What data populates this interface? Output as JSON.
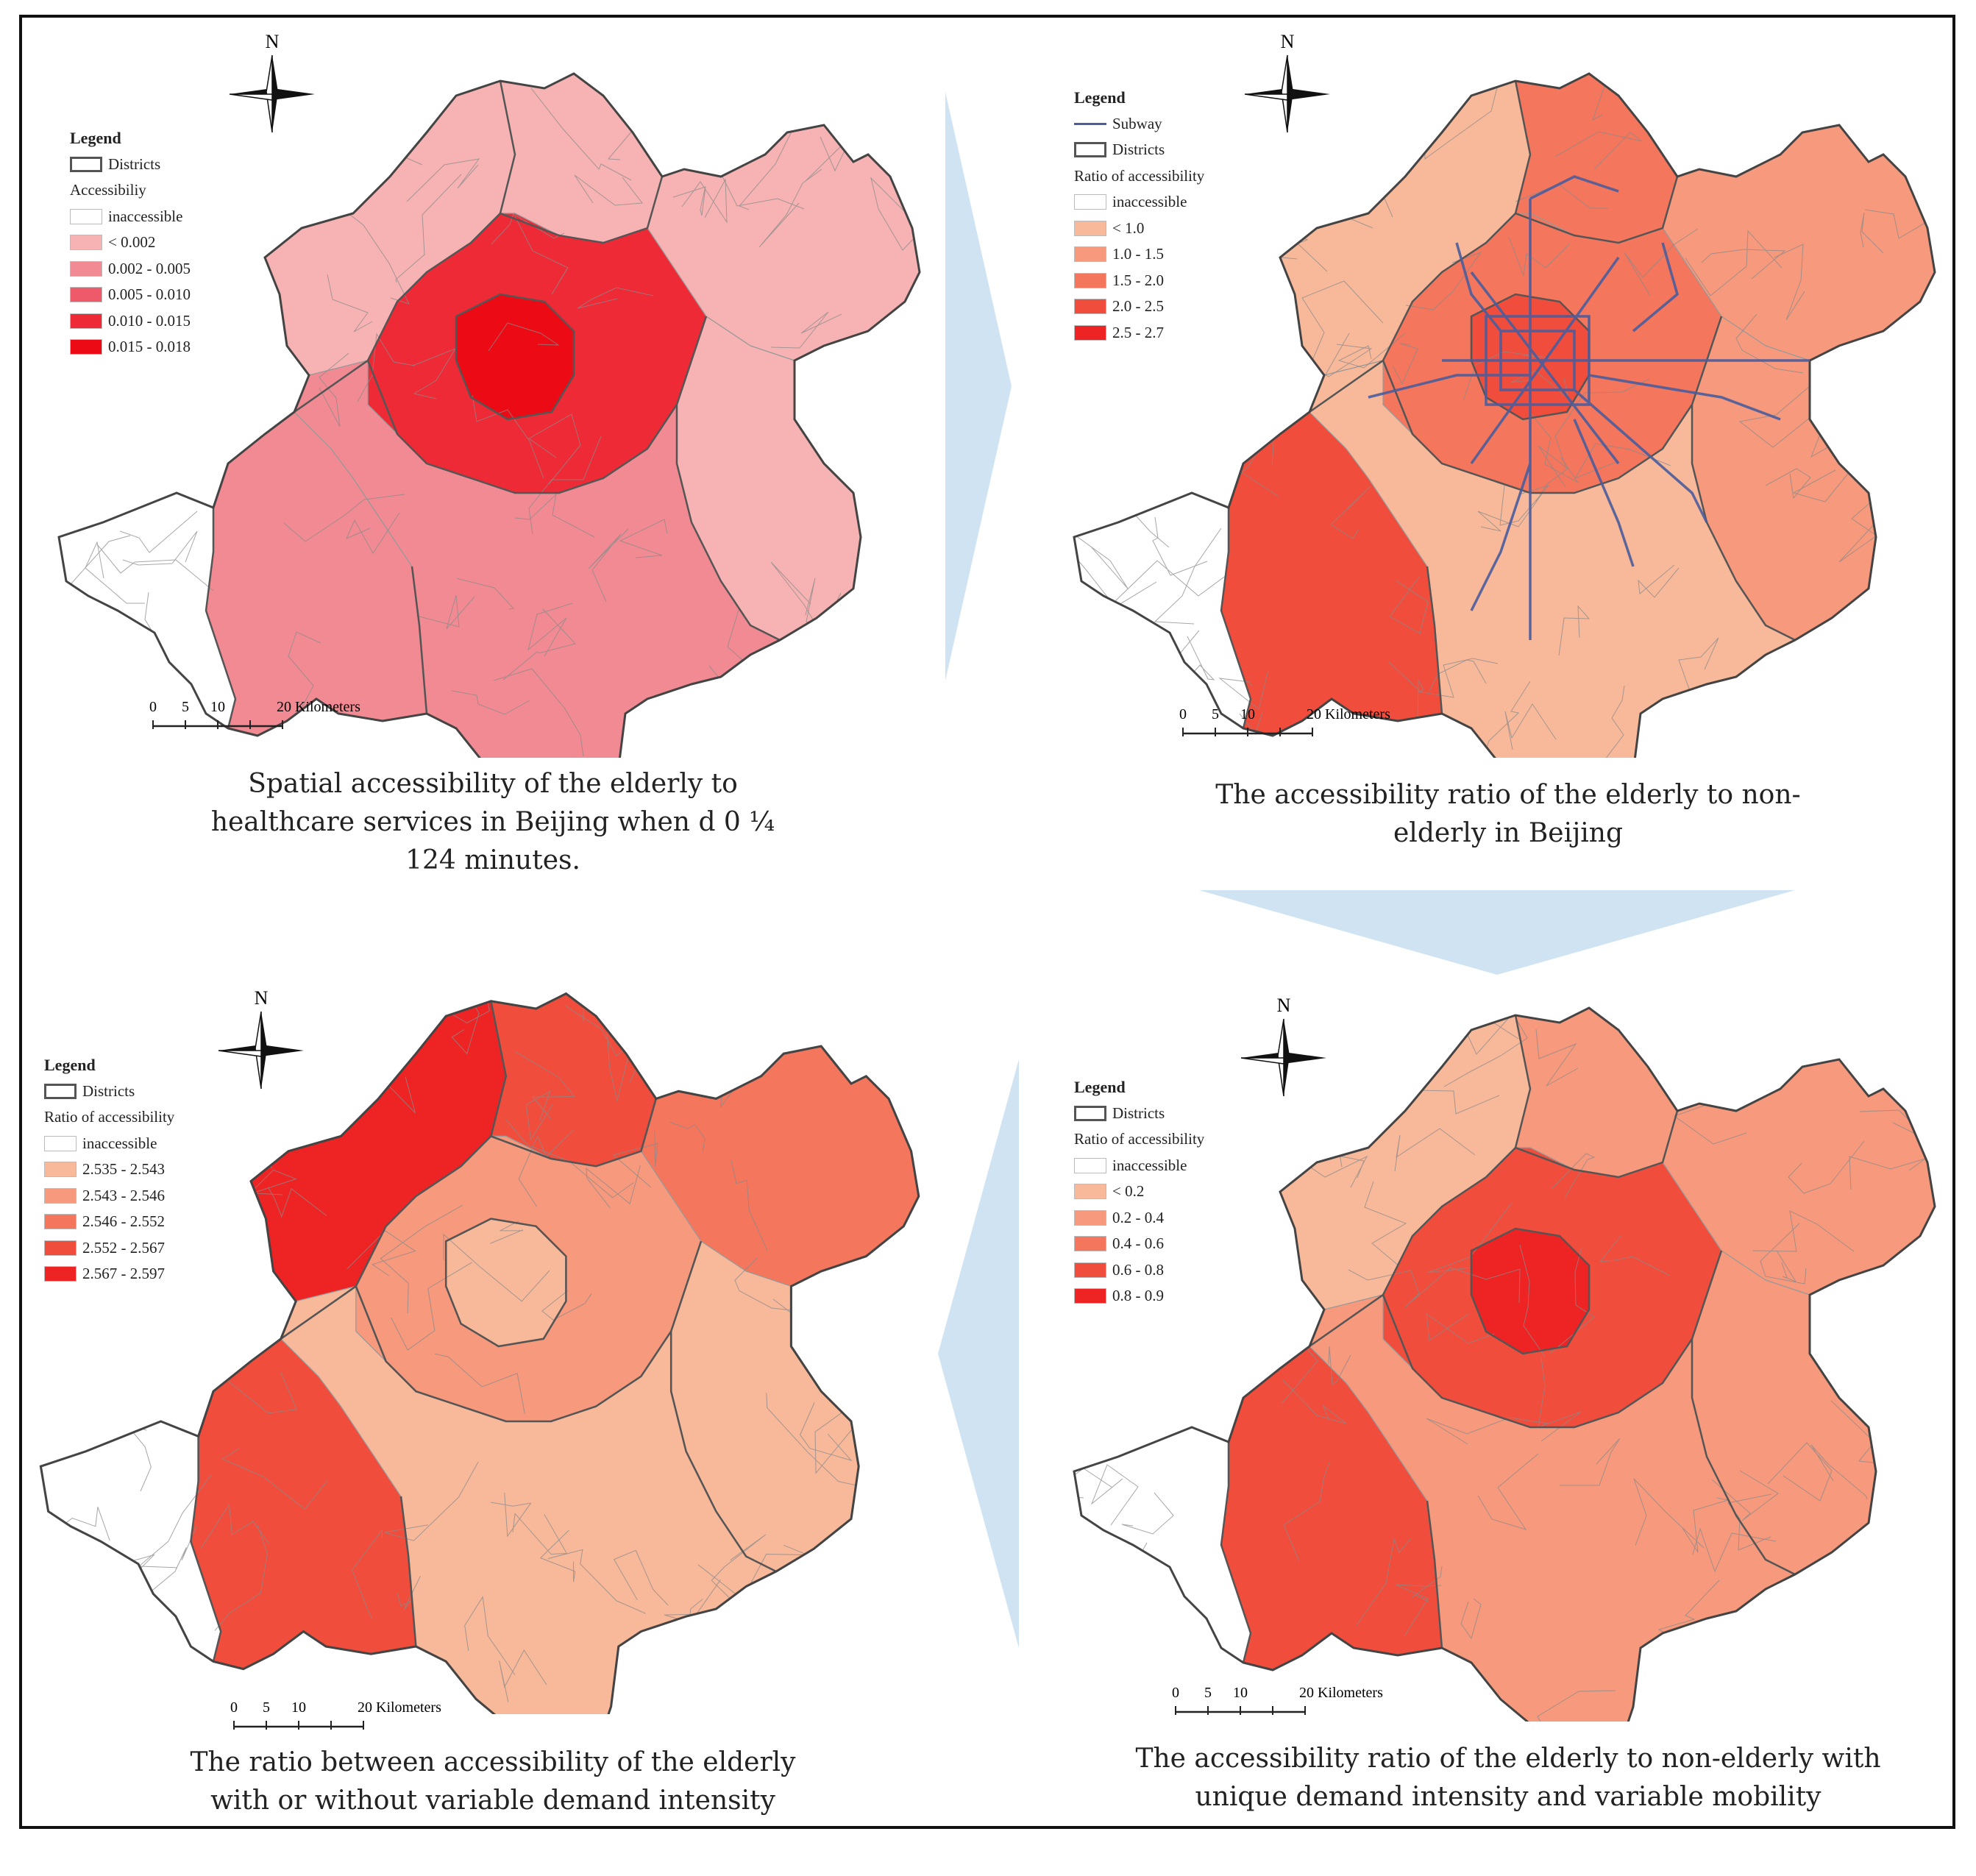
{
  "panels": {
    "tl": {
      "legend": {
        "title": "Legend",
        "districts": "Districts",
        "subtitle": "Accessibiliy",
        "classes": [
          {
            "label": "inaccessible",
            "color": "#ffffff"
          },
          {
            "label": "< 0.002",
            "color": "#f7b3b3"
          },
          {
            "label": "0.002 - 0.005",
            "color": "#f18a92"
          },
          {
            "label": "0.005 - 0.010",
            "color": "#ee5a6a"
          },
          {
            "label": "0.010 - 0.015",
            "color": "#ee2a36"
          },
          {
            "label": "0.015 - 0.018",
            "color": "#ec0a14"
          }
        ]
      },
      "north": "N",
      "scale": {
        "ticks": [
          "0",
          "5",
          "10",
          "20 Kilometers"
        ]
      },
      "caption": [
        "Spatial accessibility of the elderly to",
        "healthcare services in Beijing when d 0 ¼",
        "124 minutes."
      ]
    },
    "tr": {
      "legend": {
        "title": "Legend",
        "subway": "Subway",
        "districts": "Districts",
        "subtitle": "Ratio of accessibility",
        "classes": [
          {
            "label": "inaccessible",
            "color": "#ffffff"
          },
          {
            "label": "< 1.0",
            "color": "#f8b99a"
          },
          {
            "label": "1.0 - 1.5",
            "color": "#f6997c"
          },
          {
            "label": "1.5 - 2.0",
            "color": "#f3765d"
          },
          {
            "label": "2.0 - 2.5",
            "color": "#f04d3c"
          },
          {
            "label": "2.5 - 2.7",
            "color": "#ee2424"
          }
        ]
      },
      "north": "N",
      "scale": {
        "ticks": [
          "0",
          "5",
          "10",
          "20 Kilometers"
        ]
      },
      "caption": [
        "The accessibility ratio of the elderly to non-",
        "elderly in Beijing"
      ]
    },
    "bl": {
      "legend": {
        "title": "Legend",
        "districts": "Districts",
        "subtitle": "Ratio of accessibility",
        "classes": [
          {
            "label": "inaccessible",
            "color": "#ffffff"
          },
          {
            "label": "2.535 - 2.543",
            "color": "#f8b99a"
          },
          {
            "label": "2.543 - 2.546",
            "color": "#f6997c"
          },
          {
            "label": "2.546 - 2.552",
            "color": "#f3765d"
          },
          {
            "label": "2.552 - 2.567",
            "color": "#f04d3c"
          },
          {
            "label": "2.567 - 2.597",
            "color": "#ee2424"
          }
        ]
      },
      "north": "N",
      "scale": {
        "ticks": [
          "0",
          "5",
          "10",
          "20 Kilometers"
        ]
      },
      "caption": [
        "The ratio between accessibility of the elderly",
        "with or without variable demand intensity"
      ]
    },
    "br": {
      "legend": {
        "title": "Legend",
        "districts": "Districts",
        "subtitle": "Ratio of accessibility",
        "classes": [
          {
            "label": "inaccessible",
            "color": "#ffffff"
          },
          {
            "label": "< 0.2",
            "color": "#f8b99a"
          },
          {
            "label": "0.2 - 0.4",
            "color": "#f6997c"
          },
          {
            "label": "0.4 - 0.6",
            "color": "#f3765d"
          },
          {
            "label": "0.6 - 0.8",
            "color": "#f04d3c"
          },
          {
            "label": "0.8 - 0.9",
            "color": "#ee2424"
          }
        ]
      },
      "north": "N",
      "scale": {
        "ticks": [
          "0",
          "5",
          "10",
          "20 Kilometers"
        ]
      },
      "caption": [
        "The accessibility ratio of the elderly to non-elderly with",
        "unique demand intensity and variable mobility"
      ]
    }
  },
  "colors": {
    "arrow": "#cfe3f3",
    "district_line": "#666666",
    "subway": "#4a5d9c"
  }
}
